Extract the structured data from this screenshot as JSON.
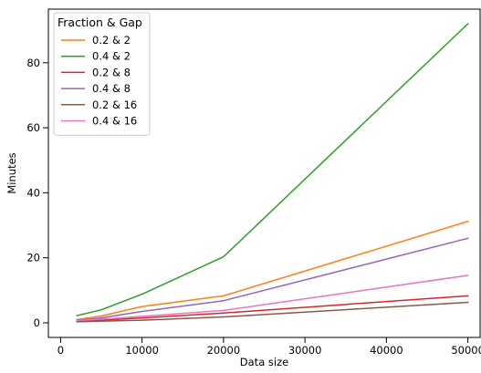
{
  "chart_data": {
    "type": "line",
    "xlabel": "Data size",
    "ylabel": "Minutes",
    "xlim": [
      -1500,
      51500
    ],
    "ylim": [
      -4.5,
      96.5
    ],
    "xticks": [
      0,
      10000,
      20000,
      30000,
      40000,
      50000
    ],
    "xtick_labels": [
      "0",
      "10000",
      "20000",
      "30000",
      "40000",
      "50000"
    ],
    "yticks": [
      0,
      20,
      40,
      60,
      80
    ],
    "ytick_labels": [
      "0",
      "20",
      "40",
      "60",
      "80"
    ],
    "grid": false,
    "legend": {
      "title": "Fraction & Gap",
      "placement": "top-left"
    },
    "x": [
      2000,
      5000,
      10000,
      20000,
      50000
    ],
    "series": [
      {
        "name": "0.2 & 2",
        "color": "#ff7f0e",
        "values": [
          1.0,
          2.1,
          5.0,
          8.3,
          31.2
        ]
      },
      {
        "name": "0.4 & 2",
        "color": "#2ca02c",
        "values": [
          2.2,
          4.0,
          8.8,
          20.3,
          92.0
        ]
      },
      {
        "name": "0.2 & 8",
        "color": "#d62728",
        "values": [
          0.5,
          0.8,
          1.5,
          3.0,
          8.3
        ]
      },
      {
        "name": "0.4 & 8",
        "color": "#9467bd",
        "values": [
          0.8,
          1.5,
          3.5,
          6.8,
          26.0
        ]
      },
      {
        "name": "0.2 & 16",
        "color": "#8c564b",
        "values": [
          0.3,
          0.5,
          0.8,
          1.8,
          6.3
        ]
      },
      {
        "name": "0.4 & 16",
        "color": "#e377c2",
        "values": [
          0.7,
          1.1,
          2.0,
          3.8,
          14.6
        ]
      }
    ]
  }
}
